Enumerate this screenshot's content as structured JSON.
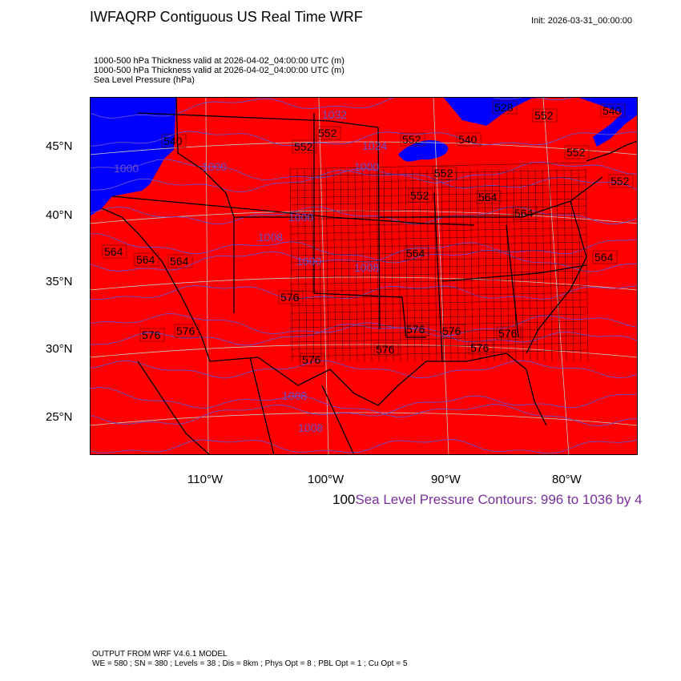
{
  "header": {
    "title": "IWFAQRP Contiguous US Real Time WRF",
    "init": "Init: 2026-03-31_00:00:00"
  },
  "subtitles": [
    "1000-500 hPa Thickness valid at 2026-04-02_04:00:00 UTC   (m)",
    "1000-500 hPa Thickness valid at 2026-04-02_04:00:00 UTC   (m)",
    "Sea Level Pressure   (hPa)"
  ],
  "map": {
    "fill_colors": {
      "above": "#ff0000",
      "below": "#0000ff"
    },
    "contour_color": "#6a4fc8",
    "border_color": "#000000",
    "grid_color": "#c8c8c8",
    "lat_labels": [
      "45°N",
      "40°N",
      "35°N",
      "30°N",
      "25°N"
    ],
    "lon_labels": [
      "110°W",
      "100°W",
      "90°W",
      "80°W"
    ],
    "thickness_labels": [
      "540",
      "552",
      "552",
      "552",
      "540",
      "552",
      "528",
      "552",
      "552",
      "540",
      "552",
      "552",
      "564",
      "564",
      "564",
      "564",
      "564",
      "564",
      "576",
      "576",
      "576",
      "576",
      "576",
      "576",
      "576",
      "576",
      "576",
      "564"
    ],
    "pressure_labels": [
      "1000",
      "1000",
      "1000",
      "1008",
      "1000",
      "1000",
      "1032",
      "1024",
      "1008",
      "1008",
      "1008"
    ]
  },
  "contour_info": {
    "prefix": "100",
    "text": "Sea Level Pressure Contours: 996 to 1036 by 4"
  },
  "footer": {
    "line1": "OUTPUT FROM WRF V4.6.1 MODEL",
    "line2": "WE = 580 ; SN = 380 ; Levels = 38 ; Dis = 8km ; Phys Opt = 8 ; PBL Opt = 1 ; Cu Opt = 5"
  }
}
